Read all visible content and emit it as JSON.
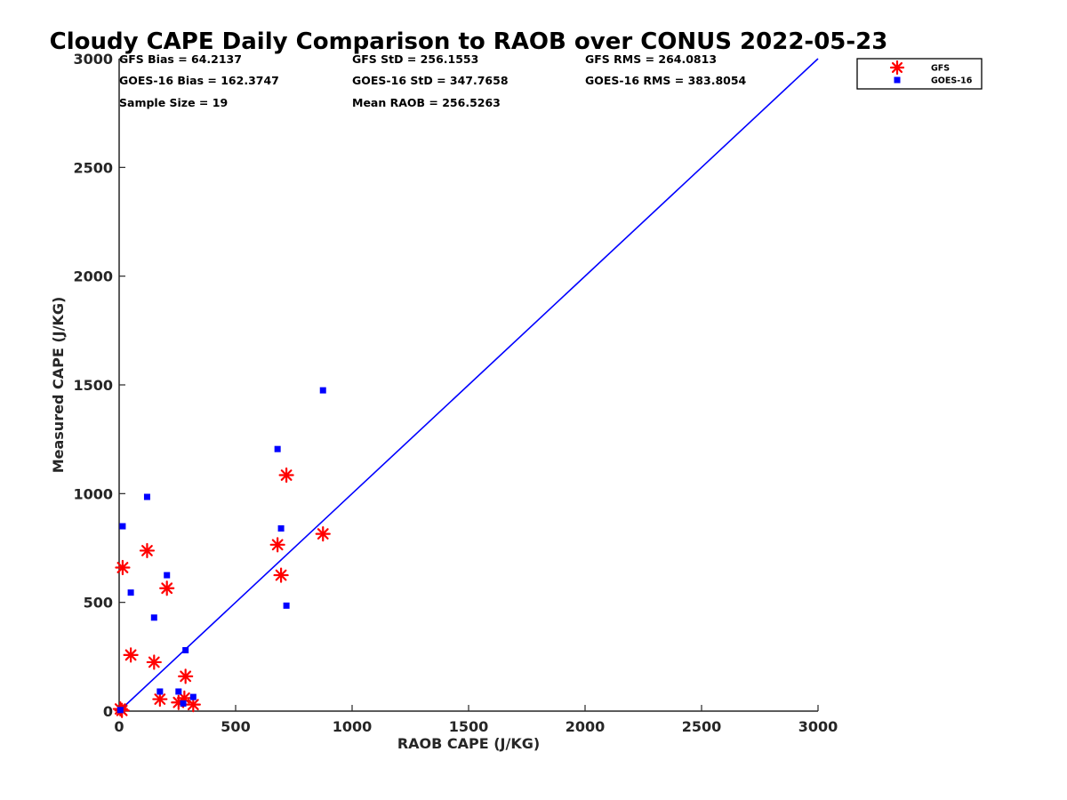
{
  "chart_data": {
    "type": "scatter",
    "title": "Cloudy CAPE Daily Comparison to RAOB over CONUS 2022-05-23",
    "xlabel": "RAOB CAPE (J/KG)",
    "ylabel": "Measured CAPE (J/KG)",
    "xlim": [
      0,
      3000
    ],
    "ylim": [
      0,
      3000
    ],
    "xticks": [
      "0",
      "500",
      "1000",
      "1500",
      "2000",
      "2500",
      "3000"
    ],
    "yticks": [
      "0",
      "500",
      "1000",
      "1500",
      "2000",
      "2500",
      "3000"
    ],
    "grid": false,
    "legend_position": "outside top-right",
    "reference_line": {
      "x": [
        0,
        3000
      ],
      "y": [
        0,
        3000
      ],
      "color": "#0000ff"
    },
    "stats": [
      "GFS Bias = 64.2137",
      "GFS StD = 256.1553",
      "GFS RMS = 264.0813",
      "GOES-16 Bias = 162.3747",
      "GOES-16 StD = 347.7658",
      "GOES-16 RMS = 383.8054",
      "Sample Size = 19",
      "Mean RAOB = 256.5263"
    ],
    "series": [
      {
        "name": "GFS",
        "marker": "asterisk",
        "color": "#ff0000",
        "points": [
          [
            5,
            10
          ],
          [
            12,
            3
          ],
          [
            15,
            660
          ],
          [
            50,
            258
          ],
          [
            120,
            738
          ],
          [
            150,
            225
          ],
          [
            175,
            55
          ],
          [
            205,
            565
          ],
          [
            255,
            40
          ],
          [
            280,
            60
          ],
          [
            285,
            160
          ],
          [
            318,
            30
          ],
          [
            680,
            765
          ],
          [
            695,
            625
          ],
          [
            718,
            1085
          ],
          [
            875,
            815
          ]
        ]
      },
      {
        "name": "GOES-16",
        "marker": "square",
        "color": "#0000ff",
        "points": [
          [
            5,
            5
          ],
          [
            15,
            850
          ],
          [
            50,
            545
          ],
          [
            120,
            985
          ],
          [
            150,
            430
          ],
          [
            175,
            90
          ],
          [
            205,
            625
          ],
          [
            255,
            90
          ],
          [
            275,
            35
          ],
          [
            285,
            280
          ],
          [
            318,
            65
          ],
          [
            680,
            1205
          ],
          [
            695,
            840
          ],
          [
            718,
            485
          ],
          [
            875,
            1475
          ]
        ]
      }
    ]
  }
}
